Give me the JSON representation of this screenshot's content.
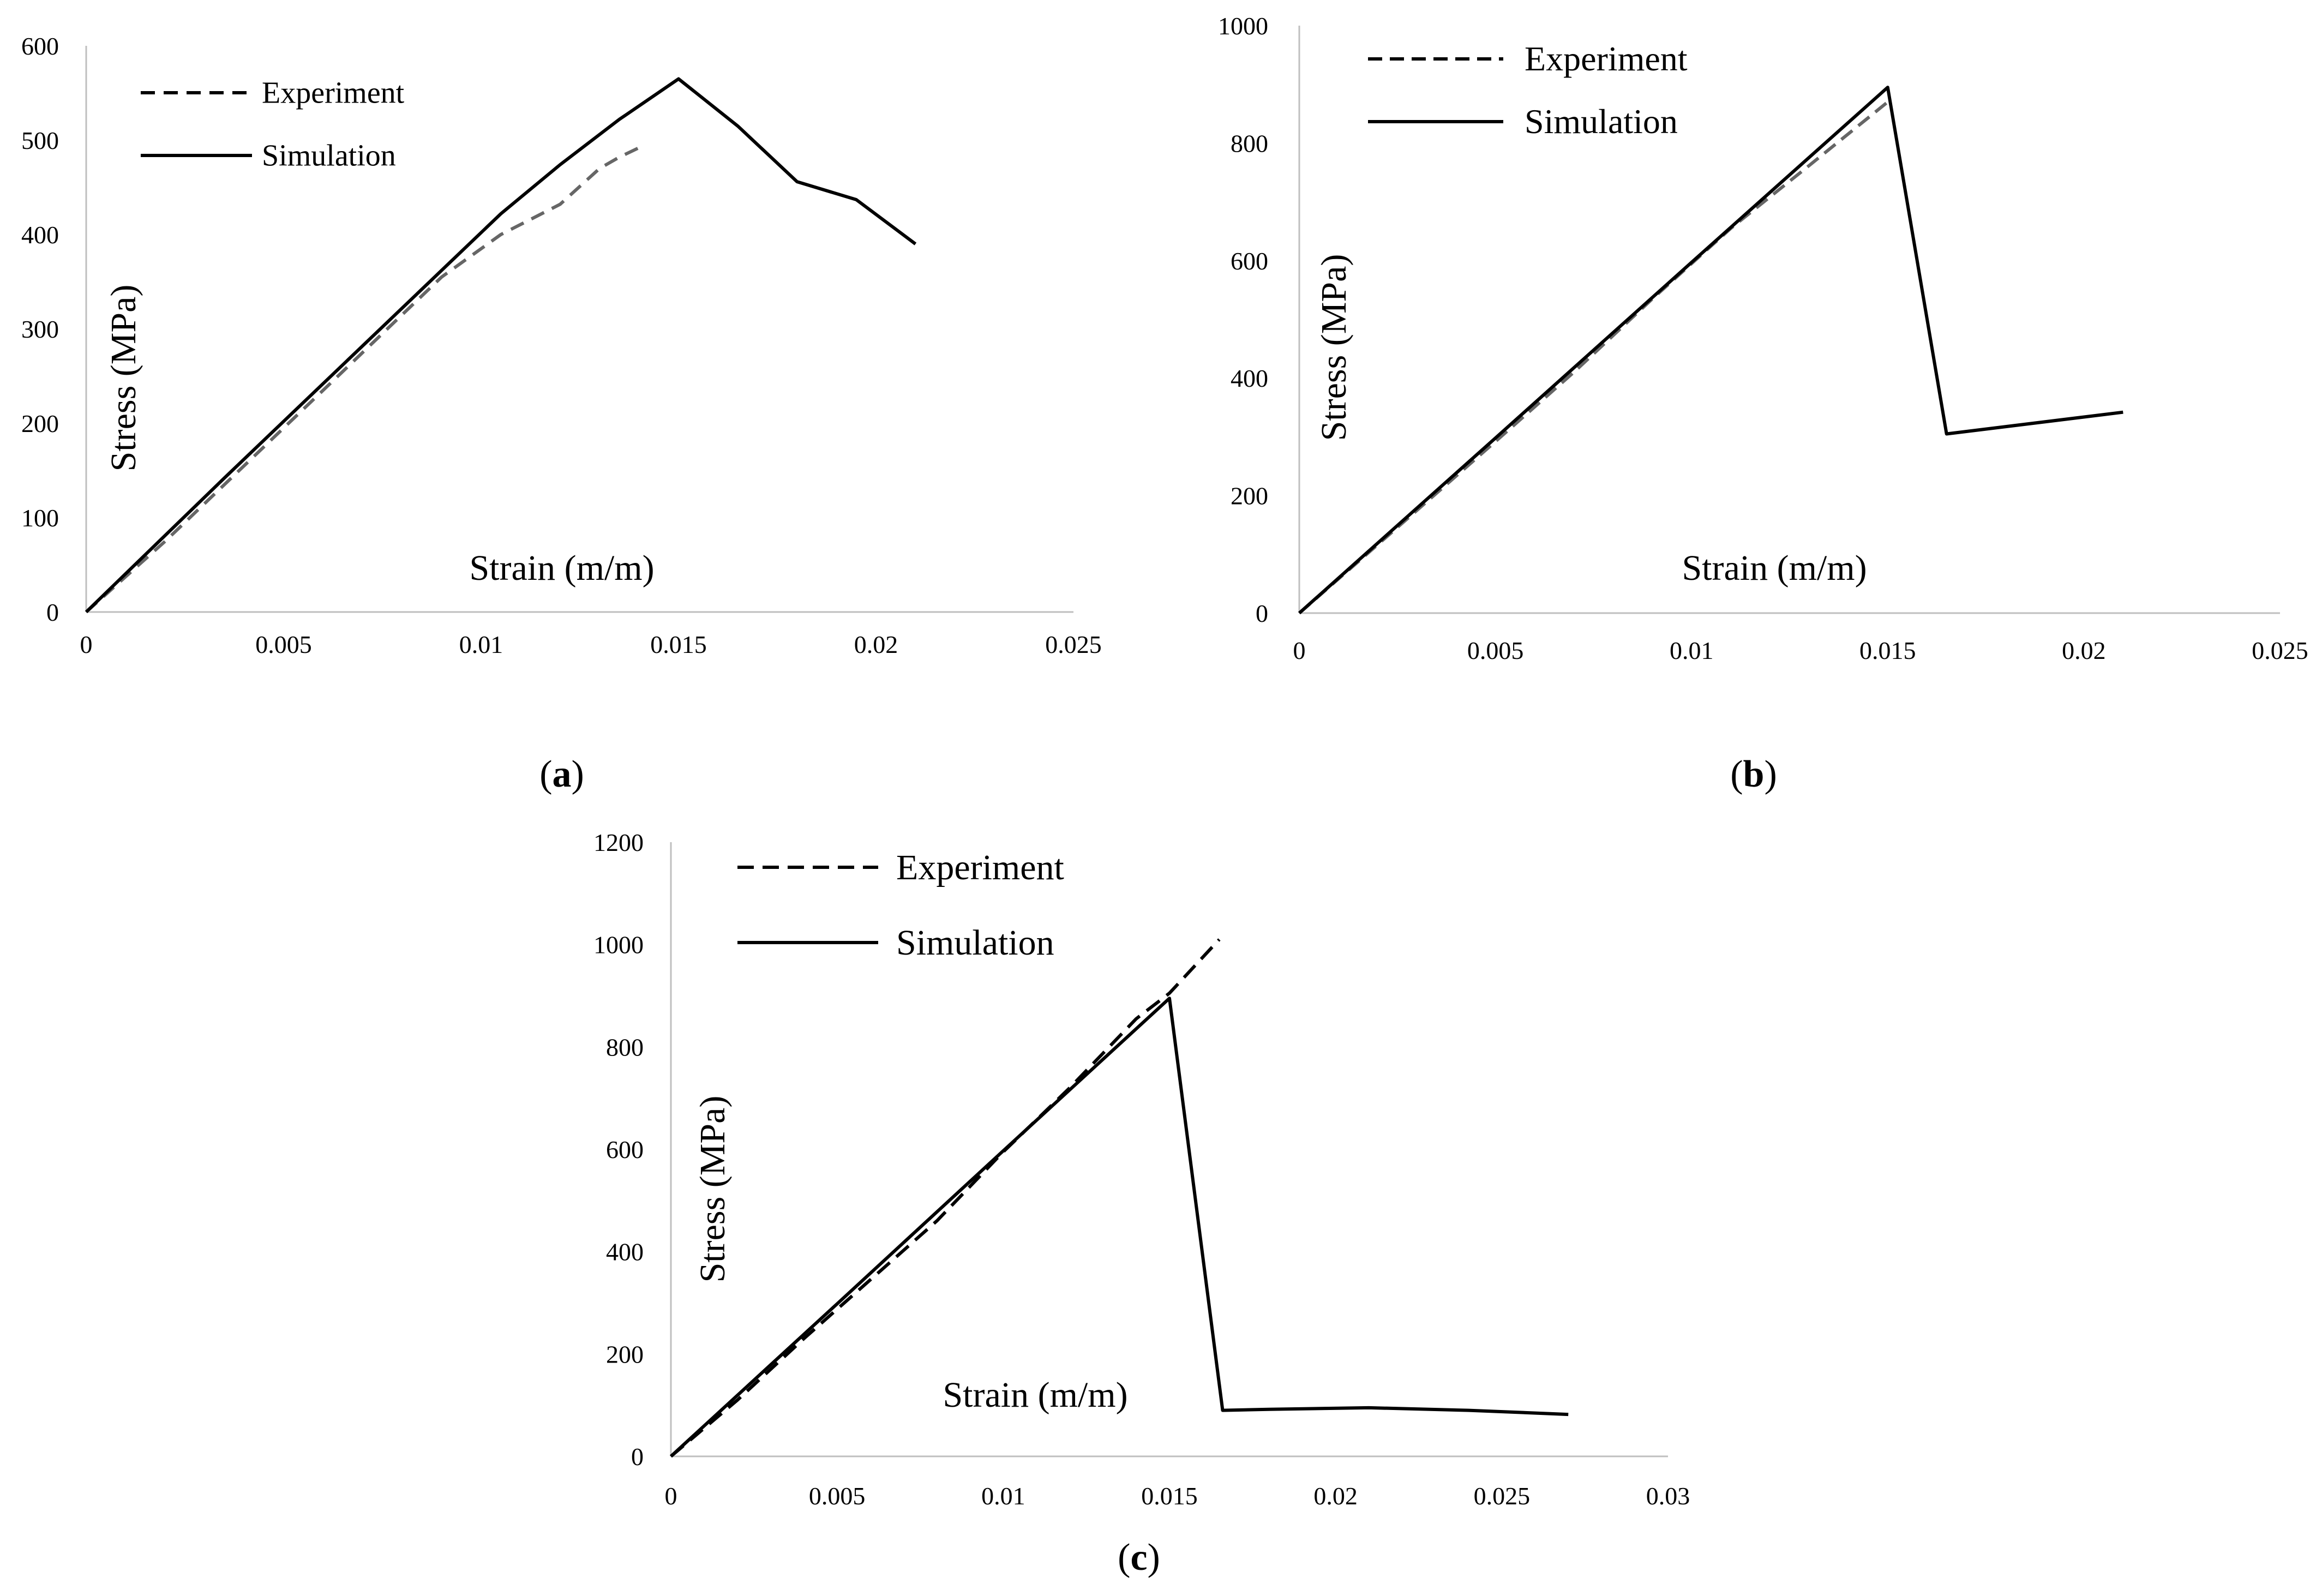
{
  "chart_data": [
    {
      "id": "a",
      "type": "line",
      "caption_letter": "a",
      "xlabel": "Strain (m/m)",
      "ylabel": "Stress (MPa)",
      "xlim": [
        0,
        0.025
      ],
      "ylim": [
        0,
        600
      ],
      "x_ticks": [
        0,
        0.005,
        0.01,
        0.015,
        0.02,
        0.025
      ],
      "x_tick_labels": [
        "0",
        "0.005",
        "0.01",
        "0.015",
        "0.02",
        "0.025"
      ],
      "y_ticks": [
        0,
        100,
        200,
        300,
        400,
        500,
        600
      ],
      "y_tick_labels": [
        "0",
        "100",
        "200",
        "300",
        "400",
        "500",
        "600"
      ],
      "legend_position": "top-left",
      "series": [
        {
          "name": "Experiment",
          "style": "dashed",
          "color": "#666666",
          "x": [
            0,
            0.002,
            0.004,
            0.006,
            0.008,
            0.009,
            0.0105,
            0.012,
            0.013,
            0.0135,
            0.014
          ],
          "y": [
            0,
            75,
            155,
            235,
            315,
            355,
            400,
            432,
            470,
            482,
            492
          ]
        },
        {
          "name": "Simulation",
          "style": "solid",
          "color": "#000000",
          "x": [
            0,
            0.0035,
            0.007,
            0.009,
            0.0105,
            0.012,
            0.0135,
            0.015,
            0.0165,
            0.018,
            0.0195,
            0.021
          ],
          "y": [
            0,
            142,
            282,
            362,
            422,
            474,
            522,
            565,
            515,
            456,
            437,
            390
          ]
        }
      ]
    },
    {
      "id": "b",
      "type": "line",
      "caption_letter": "b",
      "xlabel": "Strain (m/m)",
      "ylabel": "Stress (MPa)",
      "xlim": [
        0,
        0.025
      ],
      "ylim": [
        0,
        1000
      ],
      "x_ticks": [
        0,
        0.005,
        0.01,
        0.015,
        0.02,
        0.025
      ],
      "x_tick_labels": [
        "0",
        "0.005",
        "0.01",
        "0.015",
        "0.02",
        "0.025"
      ],
      "y_ticks": [
        0,
        200,
        400,
        600,
        800,
        1000
      ],
      "y_tick_labels": [
        "0",
        "200",
        "400",
        "600",
        "800",
        "1000"
      ],
      "legend_position": "top-left",
      "series": [
        {
          "name": "Experiment",
          "style": "dashed",
          "color": "#666666",
          "x": [
            0,
            0.003,
            0.005,
            0.007,
            0.009,
            0.011,
            0.013,
            0.015
          ],
          "y": [
            0,
            175,
            292,
            410,
            535,
            655,
            762,
            870
          ]
        },
        {
          "name": "Simulation",
          "style": "solid",
          "color": "#000000",
          "x": [
            0,
            0.005,
            0.01,
            0.015,
            0.0165,
            0.021
          ],
          "y": [
            0,
            298,
            597,
            895,
            305,
            342
          ]
        }
      ]
    },
    {
      "id": "c",
      "type": "line",
      "caption_letter": "c",
      "xlabel": "Strain (m/m)",
      "ylabel": "Stress (MPa)",
      "xlim": [
        0,
        0.03
      ],
      "ylim": [
        0,
        1200
      ],
      "x_ticks": [
        0,
        0.005,
        0.01,
        0.015,
        0.02,
        0.025,
        0.03
      ],
      "x_tick_labels": [
        "0",
        "0.005",
        "0.01",
        "0.015",
        "0.02",
        "0.025",
        "0.03"
      ],
      "y_ticks": [
        0,
        200,
        400,
        600,
        800,
        1000,
        1200
      ],
      "y_tick_labels": [
        "0",
        "200",
        "400",
        "600",
        "800",
        "1000",
        "1200"
      ],
      "legend_position": "top-left",
      "series": [
        {
          "name": "Experiment",
          "style": "dashed",
          "color": "#000000",
          "x": [
            0,
            0.002,
            0.004,
            0.006,
            0.008,
            0.01,
            0.012,
            0.014,
            0.015,
            0.0165
          ],
          "y": [
            0,
            110,
            230,
            345,
            460,
            595,
            720,
            855,
            905,
            1010
          ]
        },
        {
          "name": "Simulation",
          "style": "solid",
          "color": "#000000",
          "x": [
            0,
            0.005,
            0.01,
            0.015,
            0.0166,
            0.018,
            0.021,
            0.024,
            0.027
          ],
          "y": [
            0,
            298,
            597,
            895,
            90,
            92,
            95,
            90,
            82
          ]
        }
      ]
    }
  ]
}
